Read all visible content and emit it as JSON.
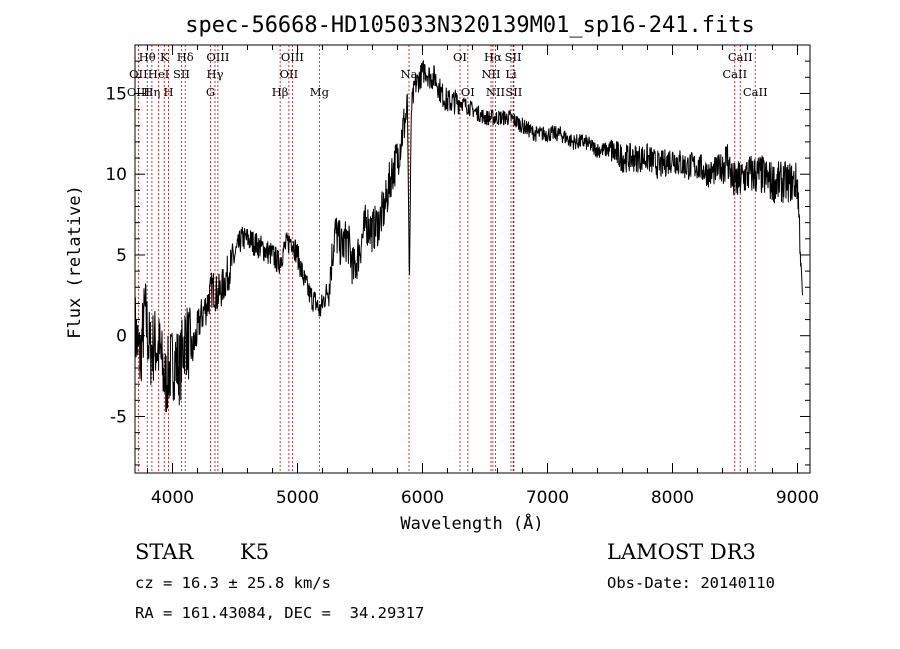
{
  "chart_data": {
    "type": "line",
    "title": "spec-56668-HD105033N320139M01_sp16-241.fits",
    "xlabel": "Wavelength (Å)",
    "ylabel": "Flux (relative)",
    "xlim": [
      3700,
      9100
    ],
    "ylim": [
      -8.5,
      18
    ],
    "xticks": [
      4000,
      5000,
      6000,
      7000,
      8000,
      9000
    ],
    "yticks": [
      -5,
      0,
      5,
      10,
      15
    ],
    "spectrum_anchors": {
      "x": [
        3700,
        3740,
        3780,
        3820,
        3860,
        3900,
        3940,
        3980,
        4020,
        4060,
        4100,
        4160,
        4220,
        4280,
        4320,
        4360,
        4400,
        4450,
        4500,
        4550,
        4600,
        4700,
        4800,
        4850,
        4900,
        4950,
        5000,
        5050,
        5100,
        5150,
        5180,
        5200,
        5250,
        5300,
        5350,
        5400,
        5450,
        5500,
        5550,
        5600,
        5650,
        5700,
        5750,
        5800,
        5850,
        5880,
        5895,
        5910,
        5940,
        5980,
        6020,
        6060,
        6100,
        6150,
        6200,
        6300,
        6400,
        6500,
        6600,
        6700,
        6800,
        6900,
        7000,
        7100,
        7200,
        7300,
        7400,
        7500,
        7600,
        7700,
        7800,
        7900,
        8000,
        8100,
        8200,
        8300,
        8400,
        8440,
        8480,
        8520,
        8600,
        8700,
        8800,
        8900,
        9000,
        9040
      ],
      "y": [
        0.5,
        -1.5,
        1.5,
        -1.0,
        -0.5,
        -1.0,
        -3.0,
        -2.0,
        -1.5,
        -2.0,
        0.0,
        -1.0,
        1.0,
        2.0,
        3.0,
        2.5,
        3.0,
        4.0,
        5.0,
        6.0,
        6.0,
        5.5,
        5.0,
        4.5,
        5.5,
        6.0,
        5.0,
        3.5,
        2.5,
        2.0,
        1.5,
        2.0,
        3.0,
        6.5,
        5.5,
        6.0,
        4.0,
        5.5,
        7.0,
        6.5,
        7.0,
        8.0,
        10.0,
        11.0,
        13.0,
        14.0,
        3.0,
        14.0,
        15.5,
        16.0,
        16.5,
        16.0,
        16.0,
        15.0,
        14.5,
        14.5,
        14.0,
        13.5,
        13.5,
        13.5,
        13.0,
        12.5,
        12.5,
        12.5,
        12.0,
        12.0,
        11.5,
        11.5,
        11.0,
        11.0,
        11.0,
        10.5,
        11.0,
        10.5,
        10.5,
        10.0,
        10.5,
        11.0,
        9.5,
        9.5,
        10.0,
        10.0,
        9.5,
        9.5,
        9.5,
        2.5
      ]
    },
    "line_ids": [
      {
        "label": "Hθ",
        "wave": 3798,
        "row": 1
      },
      {
        "label": "OII",
        "wave": 3727,
        "row": 2
      },
      {
        "label": "OIII",
        "wave": 3727,
        "row": 3
      },
      {
        "label": "K",
        "wave": 3934,
        "row": 1
      },
      {
        "label": "HeI",
        "wave": 3889,
        "row": 2
      },
      {
        "label": "Hη",
        "wave": 3835,
        "row": 3
      },
      {
        "label": "Hδ",
        "wave": 4102,
        "row": 1
      },
      {
        "label": "SII",
        "wave": 4072,
        "row": 2
      },
      {
        "label": "H",
        "wave": 3968,
        "row": 3
      },
      {
        "label": "OIII",
        "wave": 4363,
        "row": 1
      },
      {
        "label": "Hγ",
        "wave": 4340,
        "row": 2
      },
      {
        "label": "G",
        "wave": 4304,
        "row": 3
      },
      {
        "label": "OIII",
        "wave": 4959,
        "row": 1
      },
      {
        "label": "OII",
        "wave": 4931,
        "row": 2
      },
      {
        "label": "Hβ",
        "wave": 4861,
        "row": 3
      },
      {
        "label": "Mg",
        "wave": 5175,
        "row": 3
      },
      {
        "label": "Na",
        "wave": 5892,
        "row": 2
      },
      {
        "label": "OI",
        "wave": 6300,
        "row": 1
      },
      {
        "label": "OI",
        "wave": 6363,
        "row": 3
      },
      {
        "label": "Hα",
        "wave": 6563,
        "row": 1
      },
      {
        "label": "SII",
        "wave": 6725,
        "row": 1
      },
      {
        "label": "NII",
        "wave": 6548,
        "row": 2
      },
      {
        "label": "Li",
        "wave": 6708,
        "row": 2
      },
      {
        "label": "NII",
        "wave": 6584,
        "row": 3
      },
      {
        "label": "SII",
        "wave": 6731,
        "row": 3
      },
      {
        "label": "CaII",
        "wave": 8542,
        "row": 1
      },
      {
        "label": "CaII",
        "wave": 8498,
        "row": 2
      },
      {
        "label": "CaII",
        "wave": 8662,
        "row": 3
      }
    ],
    "marker_waves": [
      3727,
      3798,
      3835,
      3889,
      3934,
      3968,
      4072,
      4102,
      4304,
      4340,
      4363,
      4861,
      4931,
      4959,
      5175,
      5892,
      6300,
      6363,
      6548,
      6563,
      6584,
      6708,
      6725,
      6731,
      8498,
      8542,
      8662
    ],
    "colors": {
      "spectrum": "#000000",
      "markers": "#cc0000",
      "axes": "#000000"
    }
  },
  "info": {
    "object_class": "STAR",
    "subclass": "K5",
    "survey": "LAMOST DR3",
    "redshift_text": "cz = 16.3 ± 25.8 km/s",
    "obs_date_text": "Obs-Date: 20140110",
    "coords_text": "RA = 161.43084, DEC =  34.29317"
  }
}
